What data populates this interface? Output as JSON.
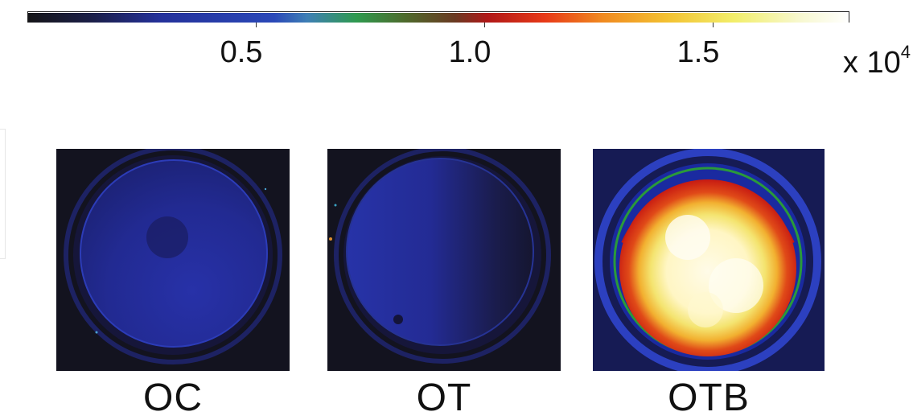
{
  "colorbar": {
    "tick_labels": [
      "0.5",
      "1.0",
      "1.5"
    ],
    "tick_values": [
      5000,
      10000,
      15000
    ],
    "range": [
      0,
      18000
    ],
    "scale_prefix": "x 10",
    "scale_exponent": "4",
    "colormap_stops": [
      "#151518",
      "#1b1f4a",
      "#24319a",
      "#2a48b8",
      "#3e7fb5",
      "#2f9a4f",
      "#4e6a2c",
      "#6a3a22",
      "#b01818",
      "#e83a18",
      "#f08a20",
      "#f3c232",
      "#f2ee6a",
      "#f7f8cf",
      "#ffffff"
    ]
  },
  "panels": [
    {
      "label": "OC"
    },
    {
      "label": "OT"
    },
    {
      "label": "OTB"
    }
  ],
  "colors": {
    "background": "#13131f",
    "dim_blue": "#1e268e",
    "ring_blue": "#2c40c0",
    "hot_red": "#c71a12",
    "hot_yellow": "#f4e470",
    "hot_white": "#fffbe8",
    "green_rim": "#2a9a3a"
  }
}
